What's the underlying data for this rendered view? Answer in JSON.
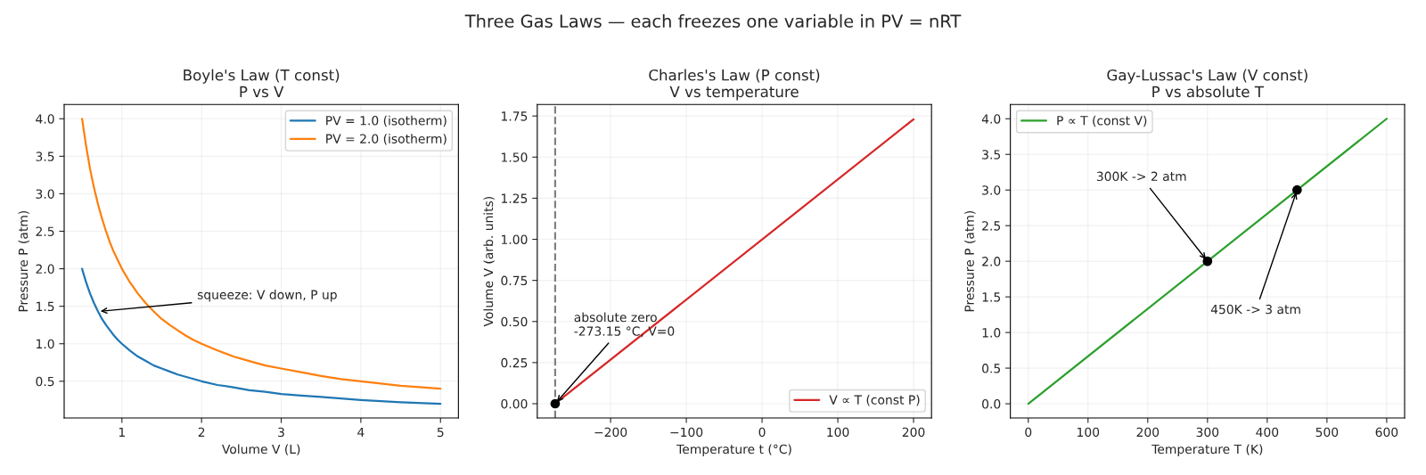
{
  "chart_data": [
    {
      "type": "other",
      "title": "Three Gas Laws — each freezes one variable in PV = nRT"
    },
    {
      "type": "line",
      "title": "Boyle's Law (T const)",
      "subtitle": "P vs V",
      "xlabel": "Volume V (L)",
      "ylabel": "Pressure P (atm)",
      "x": [
        0.5,
        0.55,
        0.6,
        0.65,
        0.7,
        0.75,
        0.8,
        0.85,
        0.9,
        0.95,
        1.0,
        1.1,
        1.2,
        1.3,
        1.4,
        1.5,
        1.6,
        1.7,
        1.8,
        1.9,
        2.0,
        2.2,
        2.4,
        2.6,
        2.8,
        3.0,
        3.25,
        3.5,
        3.75,
        4.0,
        4.5,
        5.0
      ],
      "series": [
        {
          "name": "PV = 1.0 (isotherm)",
          "color": "#1f77b4",
          "values": [
            2.0,
            1.82,
            1.67,
            1.54,
            1.43,
            1.33,
            1.25,
            1.18,
            1.11,
            1.05,
            1.0,
            0.91,
            0.83,
            0.77,
            0.71,
            0.67,
            0.63,
            0.59,
            0.56,
            0.53,
            0.5,
            0.45,
            0.42,
            0.38,
            0.36,
            0.33,
            0.31,
            0.29,
            0.27,
            0.25,
            0.22,
            0.2
          ]
        },
        {
          "name": "PV = 2.0 (isotherm)",
          "color": "#ff7f0e",
          "values": [
            4.0,
            3.64,
            3.33,
            3.08,
            2.86,
            2.67,
            2.5,
            2.35,
            2.22,
            2.11,
            2.0,
            1.82,
            1.67,
            1.54,
            1.43,
            1.33,
            1.25,
            1.18,
            1.11,
            1.05,
            1.0,
            0.91,
            0.83,
            0.77,
            0.71,
            0.67,
            0.62,
            0.57,
            0.53,
            0.5,
            0.44,
            0.4
          ]
        }
      ],
      "xlim": [
        0.275,
        5.225
      ],
      "ylim": [
        0.01,
        4.19
      ],
      "xticks": [
        1,
        2,
        3,
        4,
        5
      ],
      "yticks": [
        {
          "value": 0.5,
          "label": "0.5"
        },
        {
          "value": 1,
          "label": "1.0"
        },
        {
          "value": 1.5,
          "label": "1.5"
        },
        {
          "value": 2,
          "label": "2.0"
        },
        {
          "value": 2.5,
          "label": "2.5"
        },
        {
          "value": 3,
          "label": "3.0"
        },
        {
          "value": 3.5,
          "label": "3.5"
        },
        {
          "value": 4,
          "label": "4.0"
        }
      ],
      "annotations": [
        {
          "text": "squeeze: V down, P up",
          "x": 0.7,
          "y": 1.43
        }
      ],
      "grid": true,
      "legend": "top right",
      "line_style": "solid"
    },
    {
      "type": "line",
      "title": "Charles's Law (P const)",
      "subtitle": "V vs temperature",
      "xlabel": "Temperature t (°C)",
      "ylabel": "Volume V (arb. units)",
      "series": [
        {
          "name": "V ∝ T (const P)",
          "color": "#d62728",
          "x": [
            -273.15,
            200
          ],
          "values": [
            0,
            1.73
          ]
        },
        {
          "type": "scatter",
          "color": "#000000",
          "marker": "circle",
          "x": [
            -273.15
          ],
          "values": [
            0
          ]
        }
      ],
      "xlim": [
        -296.8,
        223.7
      ],
      "ylim": [
        -0.087,
        1.82
      ],
      "xticks": [
        {
          "value": -200,
          "label": "−200"
        },
        {
          "value": -100,
          "label": "−100"
        },
        0,
        100,
        200
      ],
      "yticks": [
        {
          "value": 0,
          "label": "0.00"
        },
        {
          "value": 0.25,
          "label": "0.25"
        },
        {
          "value": 0.5,
          "label": "0.50"
        },
        {
          "value": 0.75,
          "label": "0.75"
        },
        {
          "value": 1,
          "label": "1.00"
        },
        {
          "value": 1.25,
          "label": "1.25"
        },
        {
          "value": 1.5,
          "label": "1.50"
        },
        {
          "value": 1.75,
          "label": "1.75"
        }
      ],
      "ref_lines": [
        {
          "axis": "x",
          "value": -273.15,
          "color": "#808080",
          "line_style": "dashed"
        }
      ],
      "annotations": [
        {
          "text": "absolute zero\n-273.15 °C, V=0",
          "x": -273.15,
          "y": 0
        }
      ],
      "grid": true,
      "legend": "bottom right"
    },
    {
      "type": "line",
      "title": "Gay-Lussac's Law (V const)",
      "subtitle": "P vs absolute T",
      "xlabel": "Temperature T (K)",
      "ylabel": "Pressure P (atm)",
      "series": [
        {
          "name": "P ∝ T (const V)",
          "color": "#2ca02c",
          "x": [
            0,
            600
          ],
          "values": [
            0,
            4
          ]
        },
        {
          "type": "scatter",
          "color": "#000000",
          "marker": "circle",
          "x": [
            300,
            450
          ],
          "values": [
            2,
            3
          ]
        }
      ],
      "xlim": [
        -30,
        630
      ],
      "ylim": [
        -0.2,
        4.2
      ],
      "xticks": [
        0,
        100,
        200,
        300,
        400,
        500,
        600
      ],
      "yticks": [
        {
          "value": 0,
          "label": "0.0"
        },
        {
          "value": 0.5,
          "label": "0.5"
        },
        {
          "value": 1,
          "label": "1.0"
        },
        {
          "value": 1.5,
          "label": "1.5"
        },
        {
          "value": 2,
          "label": "2.0"
        },
        {
          "value": 2.5,
          "label": "2.5"
        },
        {
          "value": 3,
          "label": "3.0"
        },
        {
          "value": 3.5,
          "label": "3.5"
        },
        {
          "value": 4,
          "label": "4.0"
        }
      ],
      "annotations": [
        {
          "text": "300K -> 2 atm",
          "x": 300,
          "y": 2
        },
        {
          "text": "450K -> 3 atm",
          "x": 450,
          "y": 3
        }
      ],
      "grid": true,
      "legend": "top left"
    }
  ]
}
